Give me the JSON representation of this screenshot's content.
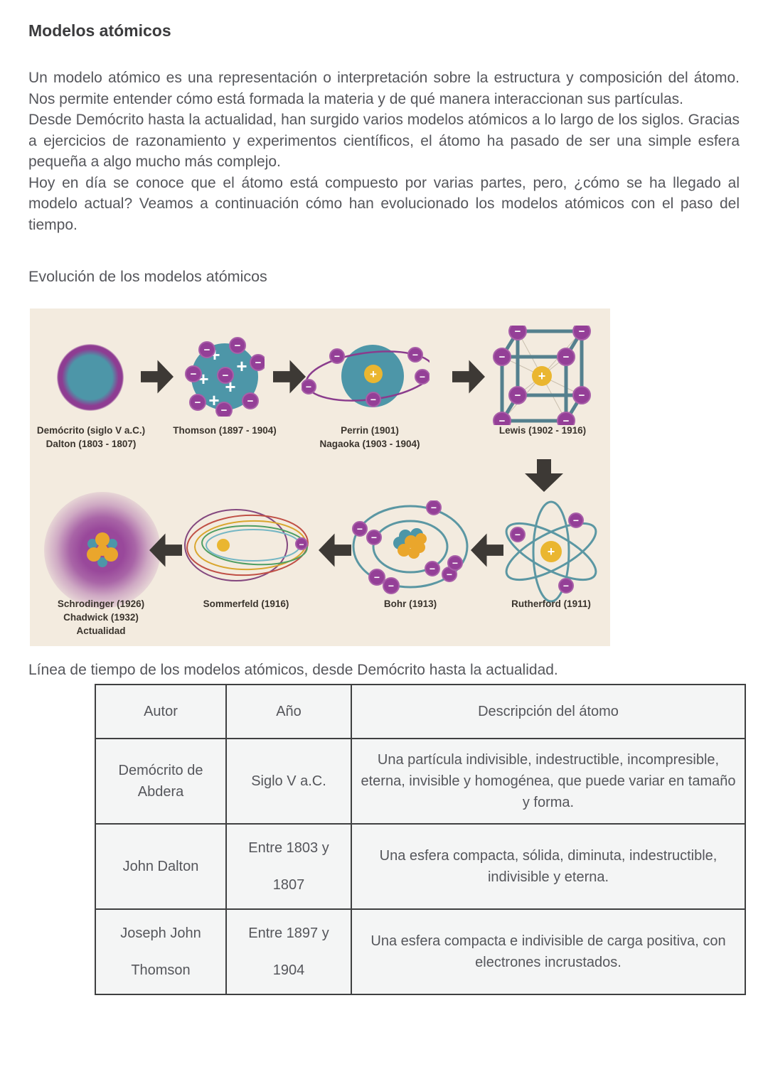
{
  "document": {
    "title": "Modelos atómicos",
    "paragraphs": [
      "Un modelo atómico es una representación o interpretación sobre la estructura y composición del átomo. Nos permite entender cómo está formada la materia y de qué manera interaccionan sus partículas.",
      "Desde Demócrito hasta la actualidad, han surgido varios modelos atómicos a lo largo de los siglos. Gracias a ejercicios de razonamiento y experimentos científicos, el átomo ha pasado de ser una simple esfera pequeña a algo mucho más complejo.",
      "Hoy en día se conoce que el átomo está compuesto por varias partes, pero, ¿cómo se ha llegado al modelo actual? Veamos a continuación cómo han evolucionado los modelos atómicos con el paso del tiempo."
    ],
    "section_heading": "Evolución de los modelos atómicos",
    "table_caption": "Línea de tiempo de los modelos atómicos, desde Demócrito hasta la actualidad."
  },
  "diagram": {
    "models": {
      "democritus_dalton": {
        "label_lines": [
          "Demócrito (siglo V a.C.)",
          "Dalton (1803 - 1807)"
        ]
      },
      "thomson": {
        "label_lines": [
          "Thomson (1897 - 1904)"
        ]
      },
      "perrin_nagaoka": {
        "label_lines": [
          "Perrin (1901)",
          "Nagaoka (1903 - 1904)"
        ]
      },
      "lewis": {
        "label_lines": [
          "Lewis (1902 - 1916)"
        ]
      },
      "schrodinger": {
        "label_lines": [
          "Schrodinger (1926)",
          "Chadwick (1932)",
          "Actualidad"
        ]
      },
      "sommerfeld": {
        "label_lines": [
          "Sommerfeld (1916)"
        ]
      },
      "bohr": {
        "label_lines": [
          "Bohr (1913)"
        ]
      },
      "rutherford": {
        "label_lines": [
          "Rutherford (1911)"
        ]
      }
    },
    "symbols": {
      "plus": "+",
      "minus": "−"
    },
    "colors": {
      "background": "#f3ebdf",
      "teal": "#4d96a8",
      "purple": "#943f97",
      "yellow": "#eab630",
      "arrow": "#3d3935"
    }
  },
  "table": {
    "headers": [
      "Autor",
      "Año",
      "Descripción del átomo"
    ],
    "rows": [
      {
        "autor_lines": [
          "Demócrito de",
          "Abdera"
        ],
        "ano_lines": [
          "Siglo V a.C."
        ],
        "descripcion": "Una partícula indivisible, indestructible, incompresible, eterna, invisible y homogénea, que puede variar en tamaño y forma.",
        "spaced_lines": false
      },
      {
        "autor_lines": [
          "John Dalton"
        ],
        "ano_lines": [
          "Entre 1803 y",
          "1807"
        ],
        "descripcion": "Una esfera compacta, sólida, diminuta, indestructible, indivisible y eterna.",
        "spaced_lines": true
      },
      {
        "autor_lines": [
          "Joseph John",
          "Thomson"
        ],
        "ano_lines": [
          "Entre 1897 y",
          "1904"
        ],
        "descripcion": "Una esfera compacta e indivisible de carga positiva, con electrones incrustados.",
        "spaced_lines": true
      }
    ]
  }
}
